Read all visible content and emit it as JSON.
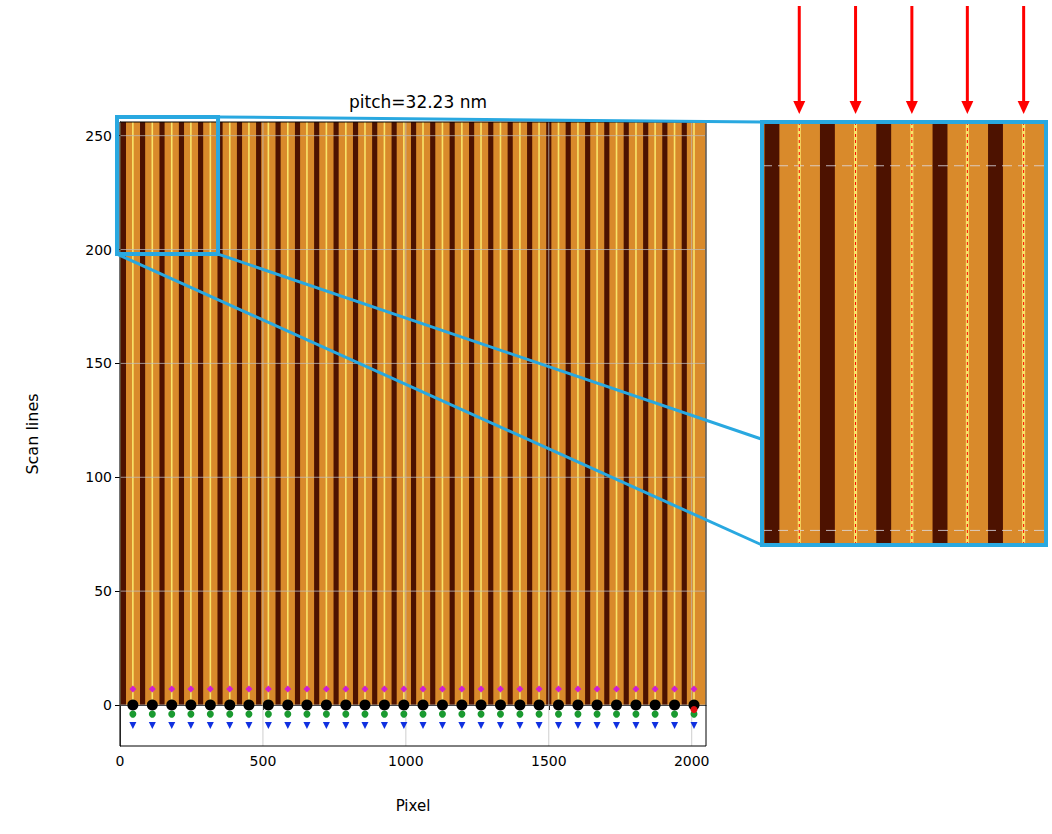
{
  "chart_data": [
    {
      "type": "image",
      "title": "pitch=32.23 nm",
      "x_label": "Pixel",
      "y_label": "Scan lines",
      "xlim": [
        0,
        2050
      ],
      "ylim": [
        -18,
        256
      ],
      "xticks": [
        0,
        500,
        1000,
        1500,
        2000
      ],
      "yticks": [
        0,
        50,
        100,
        150,
        200,
        250
      ],
      "grid": true,
      "image": {
        "x": [
          0,
          2048
        ],
        "y": [
          0,
          256
        ],
        "color": "#d98a2b"
      },
      "dark_bands": {
        "color": "#4d1200",
        "x": [
          [
            3,
            21
          ],
          [
            70,
            88
          ],
          [
            138,
            156
          ],
          [
            206,
            224
          ],
          [
            273,
            291
          ],
          [
            341,
            359
          ],
          [
            409,
            427
          ],
          [
            476,
            494
          ],
          [
            544,
            562
          ],
          [
            612,
            630
          ],
          [
            679,
            697
          ],
          [
            747,
            765
          ],
          [
            815,
            833
          ],
          [
            882,
            900
          ],
          [
            950,
            968
          ],
          [
            1018,
            1036
          ],
          [
            1085,
            1103
          ],
          [
            1153,
            1171
          ],
          [
            1221,
            1239
          ],
          [
            1288,
            1306
          ],
          [
            1356,
            1374
          ],
          [
            1424,
            1442
          ],
          [
            1491,
            1509
          ],
          [
            1559,
            1577
          ],
          [
            1627,
            1645
          ],
          [
            1694,
            1712
          ],
          [
            1762,
            1780
          ],
          [
            1830,
            1848
          ],
          [
            1897,
            1915
          ],
          [
            1965,
            1983
          ]
        ]
      },
      "bright_lines": {
        "color": "#f9e46a",
        "x": [
          45,
          113,
          181,
          248,
          316,
          384,
          451,
          519,
          587,
          654,
          722,
          790,
          857,
          925,
          993,
          1060,
          1128,
          1196,
          1263,
          1331,
          1399,
          1466,
          1534,
          1602,
          1669,
          1737,
          1805,
          1872,
          1940,
          2008
        ]
      },
      "series": [
        {
          "type": "scatter",
          "color": "#000000",
          "marker": "circle",
          "x": [
            45,
            113,
            181,
            248,
            316,
            384,
            451,
            519,
            587,
            654,
            722,
            790,
            857,
            925,
            993,
            1060,
            1128,
            1196,
            1263,
            1331,
            1399,
            1466,
            1534,
            1602,
            1669,
            1737,
            1805,
            1872,
            1940,
            2008
          ],
          "values": [
            0,
            0,
            0,
            0,
            0,
            0,
            0,
            0,
            0,
            0,
            0,
            0,
            0,
            0,
            0,
            0,
            0,
            0,
            0,
            0,
            0,
            0,
            0,
            0,
            0,
            0,
            0,
            0,
            0,
            0
          ]
        },
        {
          "type": "scatter",
          "color": "#d020d0",
          "marker": "diamond",
          "x": [
            45,
            113,
            181,
            248,
            316,
            384,
            451,
            519,
            587,
            654,
            722,
            790,
            857,
            925,
            993,
            1060,
            1128,
            1196,
            1263,
            1331,
            1399,
            1466,
            1534,
            1602,
            1669,
            1737,
            1805,
            1872,
            1940,
            2008
          ],
          "values": [
            7,
            7,
            7,
            7,
            7,
            7,
            7,
            7,
            7,
            7,
            7,
            7,
            7,
            7,
            7,
            7,
            7,
            7,
            7,
            7,
            7,
            7,
            7,
            7,
            7,
            7,
            7,
            7,
            7,
            7
          ]
        },
        {
          "type": "scatter",
          "color": "#1a9a30",
          "marker": "circle",
          "x": [
            45,
            113,
            181,
            248,
            316,
            384,
            451,
            519,
            587,
            654,
            722,
            790,
            857,
            925,
            993,
            1060,
            1128,
            1196,
            1263,
            1331,
            1399,
            1466,
            1534,
            1602,
            1669,
            1737,
            1805,
            1872,
            1940,
            2008
          ],
          "values": [
            -4,
            -4,
            -4,
            -4,
            -4,
            -4,
            -4,
            -4,
            -4,
            -4,
            -4,
            -4,
            -4,
            -4,
            -4,
            -4,
            -4,
            -4,
            -4,
            -4,
            -4,
            -4,
            -4,
            -4,
            -4,
            -4,
            -4,
            -4,
            -4,
            -4
          ]
        },
        {
          "type": "scatter",
          "color": "#1030e0",
          "marker": "triangle_down",
          "x": [
            45,
            113,
            181,
            248,
            316,
            384,
            451,
            519,
            587,
            654,
            722,
            790,
            857,
            925,
            993,
            1060,
            1128,
            1196,
            1263,
            1331,
            1399,
            1466,
            1534,
            1602,
            1669,
            1737,
            1805,
            1872,
            1940,
            2008
          ],
          "values": [
            -9,
            -9,
            -9,
            -9,
            -9,
            -9,
            -9,
            -9,
            -9,
            -9,
            -9,
            -9,
            -9,
            -9,
            -9,
            -9,
            -9,
            -9,
            -9,
            -9,
            -9,
            -9,
            -9,
            -9,
            -9,
            -9,
            -9,
            -9,
            -9,
            -9
          ]
        },
        {
          "type": "scatter",
          "color": "#e01010",
          "marker": "circle",
          "x": [
            2008
          ],
          "values": [
            -2
          ]
        }
      ]
    },
    {
      "type": "zoom_inset",
      "xlim": [
        0,
        343
      ],
      "ylim": [
        198,
        256
      ],
      "yticks": [
        200,
        250
      ],
      "grid": true,
      "tick_labels": false,
      "color": "#29a8e0",
      "guide_lines": {
        "color": "#ff0000",
        "line_style": "dotted",
        "marker": "arrow",
        "x": [
          45,
          113,
          181,
          248,
          316
        ]
      }
    }
  ]
}
